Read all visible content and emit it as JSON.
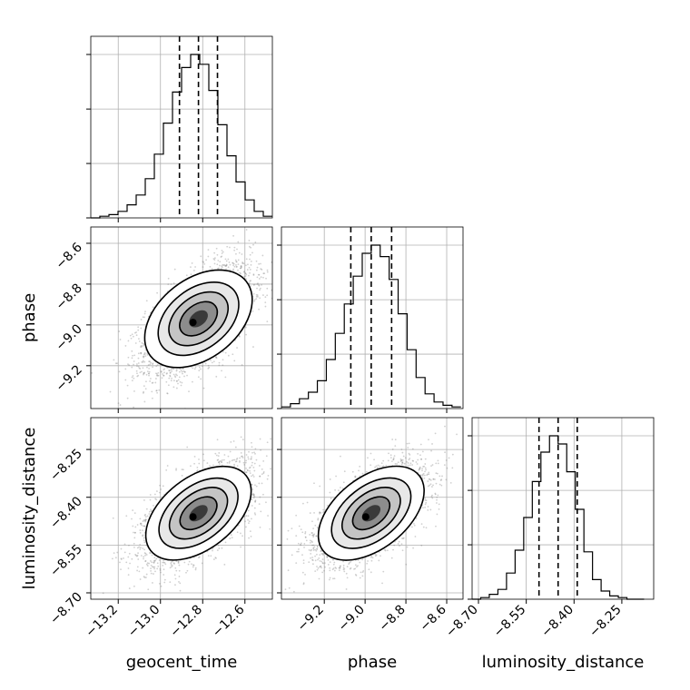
{
  "chart_data": {
    "type": "corner",
    "parameters": [
      "geocent_time",
      "phase",
      "luminosity_distance"
    ],
    "axis_labels": {
      "x": [
        "geocent_time",
        "phase",
        "luminosity_distance"
      ],
      "y": [
        "phase",
        "luminosity_distance"
      ]
    },
    "grid": true,
    "ticks": {
      "geocent_time": {
        "range": [
          -13.33,
          -12.47
        ],
        "values": [
          -13.2,
          -13.0,
          -12.8,
          -12.6
        ],
        "labels": [
          "−13.2",
          "−13.0",
          "−12.8",
          "−12.6"
        ]
      },
      "phase": {
        "range": [
          -9.41,
          -8.52
        ],
        "values": [
          -9.2,
          -9.0,
          -8.8,
          -8.6
        ],
        "labels": [
          "−9.2",
          "−9.0",
          "−8.8",
          "−8.6"
        ]
      },
      "luminosity_distance": {
        "range": [
          -8.72,
          -8.15
        ],
        "values": [
          -8.7,
          -8.55,
          -8.4,
          -8.25
        ],
        "labels": [
          "−8.70",
          "−8.55",
          "−8.40",
          "−8.25"
        ]
      }
    },
    "histograms": [
      {
        "parameter": "geocent_time",
        "quantiles": [
          -12.91,
          -12.82,
          -12.73
        ],
        "bin_edges": [
          -13.33,
          -13.287,
          -13.244,
          -13.201,
          -13.158,
          -13.115,
          -13.072,
          -13.029,
          -12.986,
          -12.943,
          -12.9,
          -12.857,
          -12.814,
          -12.771,
          -12.728,
          -12.685,
          -12.642,
          -12.599,
          -12.556,
          -12.513,
          -12.47
        ],
        "counts": [
          0,
          0.01,
          0.02,
          0.04,
          0.08,
          0.14,
          0.24,
          0.39,
          0.58,
          0.77,
          0.92,
          1.0,
          0.94,
          0.78,
          0.57,
          0.38,
          0.22,
          0.11,
          0.04,
          0.01
        ]
      },
      {
        "parameter": "phase",
        "quantiles": [
          -9.07,
          -8.97,
          -8.87
        ],
        "bin_edges": [
          -9.41,
          -9.366,
          -9.322,
          -9.278,
          -9.234,
          -9.19,
          -9.146,
          -9.102,
          -9.058,
          -9.014,
          -8.97,
          -8.926,
          -8.882,
          -8.838,
          -8.794,
          -8.75,
          -8.706,
          -8.662,
          -8.618,
          -8.574,
          -8.53
        ],
        "counts": [
          0.01,
          0.03,
          0.06,
          0.1,
          0.17,
          0.3,
          0.46,
          0.64,
          0.81,
          0.95,
          1.0,
          0.93,
          0.79,
          0.58,
          0.36,
          0.19,
          0.09,
          0.04,
          0.02,
          0.01
        ]
      },
      {
        "parameter": "luminosity_distance",
        "quantiles": [
          -8.51,
          -8.45,
          -8.39
        ],
        "bin_edges": [
          -8.72,
          -8.693,
          -8.666,
          -8.639,
          -8.612,
          -8.585,
          -8.558,
          -8.531,
          -8.504,
          -8.477,
          -8.45,
          -8.423,
          -8.396,
          -8.369,
          -8.342,
          -8.315,
          -8.288,
          -8.261,
          -8.234,
          -8.207,
          -8.18
        ],
        "counts": [
          0,
          0.01,
          0.03,
          0.06,
          0.16,
          0.3,
          0.5,
          0.72,
          0.9,
          1.0,
          0.95,
          0.78,
          0.55,
          0.29,
          0.12,
          0.05,
          0.02,
          0.01,
          0,
          0
        ]
      }
    ],
    "joint": [
      {
        "x": "geocent_time",
        "y": "phase",
        "mean": [
          -12.82,
          -8.97
        ],
        "sd": [
          0.125,
          0.13
        ],
        "correlation": 0.6,
        "samples": 3500
      },
      {
        "x": "geocent_time",
        "y": "luminosity_distance",
        "mean": [
          -12.82,
          -8.45
        ],
        "sd": [
          0.125,
          0.075
        ],
        "correlation": 0.6,
        "samples": 3500
      },
      {
        "x": "phase",
        "y": "luminosity_distance",
        "mean": [
          -8.97,
          -8.45
        ],
        "sd": [
          0.13,
          0.075
        ],
        "correlation": 0.6,
        "samples": 3500
      }
    ]
  }
}
